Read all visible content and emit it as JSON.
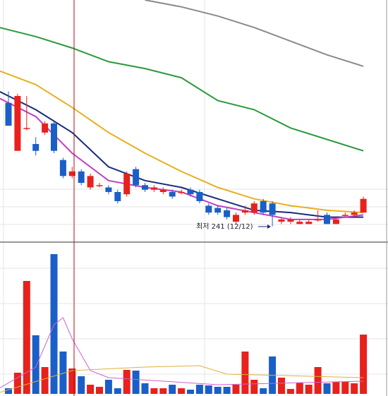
{
  "chart_data": [
    {
      "type": "candlestick",
      "ylim": [
        235,
        340
      ],
      "up_color": "#e8211c",
      "down_color": "#1a5fc8",
      "open": [
        295,
        274,
        284,
        277,
        282,
        286,
        270,
        263,
        265,
        258,
        259,
        258,
        256,
        255,
        266,
        259,
        257,
        256,
        256,
        256,
        257,
        256,
        250,
        249,
        248,
        243,
        247,
        247,
        252,
        251,
        243,
        243,
        242,
        242,
        244,
        246,
        242,
        246,
        246,
        247
      ],
      "high": [
        300,
        299,
        298,
        280,
        287,
        287,
        271,
        267,
        266,
        264,
        260,
        259,
        257,
        265,
        267,
        260,
        259,
        258,
        257,
        257,
        258,
        257,
        251,
        250,
        249,
        247,
        250,
        252,
        253,
        252,
        245,
        245,
        244,
        244,
        248,
        247,
        245,
        247,
        248,
        254
      ],
      "low": [
        285,
        274,
        283,
        272,
        281,
        273,
        262,
        262,
        259,
        257,
        258,
        255,
        251,
        254,
        258,
        256,
        256,
        255,
        253,
        255,
        254,
        251,
        246,
        246,
        244,
        242,
        246,
        246,
        246,
        241,
        242,
        242,
        242,
        242,
        243,
        242,
        242,
        245,
        245,
        247
      ],
      "close": [
        285,
        298,
        284,
        274,
        286,
        274,
        263,
        265,
        260,
        263,
        259,
        256,
        252,
        264,
        259,
        257,
        258,
        257,
        254,
        256,
        255,
        252,
        247,
        247,
        245,
        246,
        248,
        251,
        247,
        246,
        244,
        244,
        243,
        243,
        244,
        242,
        244,
        246,
        247,
        253
      ],
      "series": [
        {
          "color": "#8a8a8a",
          "x": [
            11,
            15,
            19,
            23,
            27,
            31,
            35,
            39
          ],
          "values": [
            null,
            340,
            337,
            333,
            328,
            322,
            316,
            311
          ]
        },
        {
          "color": "#2a9a3a",
          "x": [
            -1,
            3,
            7,
            11,
            15,
            19,
            23,
            27,
            31,
            35,
            39
          ],
          "values": [
            328,
            324,
            319,
            313,
            310,
            306,
            296,
            292,
            284,
            279,
            274
          ]
        },
        {
          "color": "#e8b020",
          "x": [
            -1,
            3,
            7,
            11,
            15,
            19,
            23,
            27,
            31,
            35,
            39
          ],
          "values": [
            309,
            303,
            293,
            282,
            273,
            265,
            258,
            253,
            250,
            248,
            247
          ]
        },
        {
          "color": "#1a2a7a",
          "x": [
            -1,
            3,
            7,
            11,
            15,
            19,
            23,
            27,
            31,
            35,
            39
          ],
          "values": [
            300,
            292,
            282,
            267,
            261,
            258,
            253,
            248,
            247,
            245,
            245
          ]
        },
        {
          "color": "#c040c0",
          "x": [
            -1,
            3,
            7,
            11,
            15,
            19,
            23,
            27,
            31,
            35,
            39
          ],
          "values": [
            297,
            289,
            273,
            261,
            258,
            256,
            250,
            247,
            244,
            244,
            246
          ]
        }
      ],
      "annotation": "최저 241 (12/12)"
    },
    {
      "type": "bar",
      "ylim": [
        0,
        200
      ],
      "values": [
        8,
        30,
        160,
        83,
        38,
        198,
        60,
        36,
        25,
        13,
        10,
        20,
        8,
        34,
        33,
        15,
        8,
        8,
        13,
        8,
        6,
        13,
        12,
        10,
        10,
        13,
        60,
        20,
        8,
        53,
        23,
        7,
        16,
        13,
        38,
        15,
        17,
        17,
        15,
        84
      ],
      "series": [
        {
          "color": "#d060d0",
          "x": [
            -1,
            3,
            5,
            6,
            7,
            9,
            11,
            23,
            39
          ],
          "values": [
            8,
            38,
            98,
            108,
            78,
            33,
            23,
            13,
            18
          ]
        },
        {
          "color": "#e0b040",
          "x": [
            -1,
            7,
            15,
            21,
            24,
            39
          ],
          "values": [
            2,
            33,
            38,
            40,
            28,
            23
          ]
        }
      ]
    }
  ]
}
